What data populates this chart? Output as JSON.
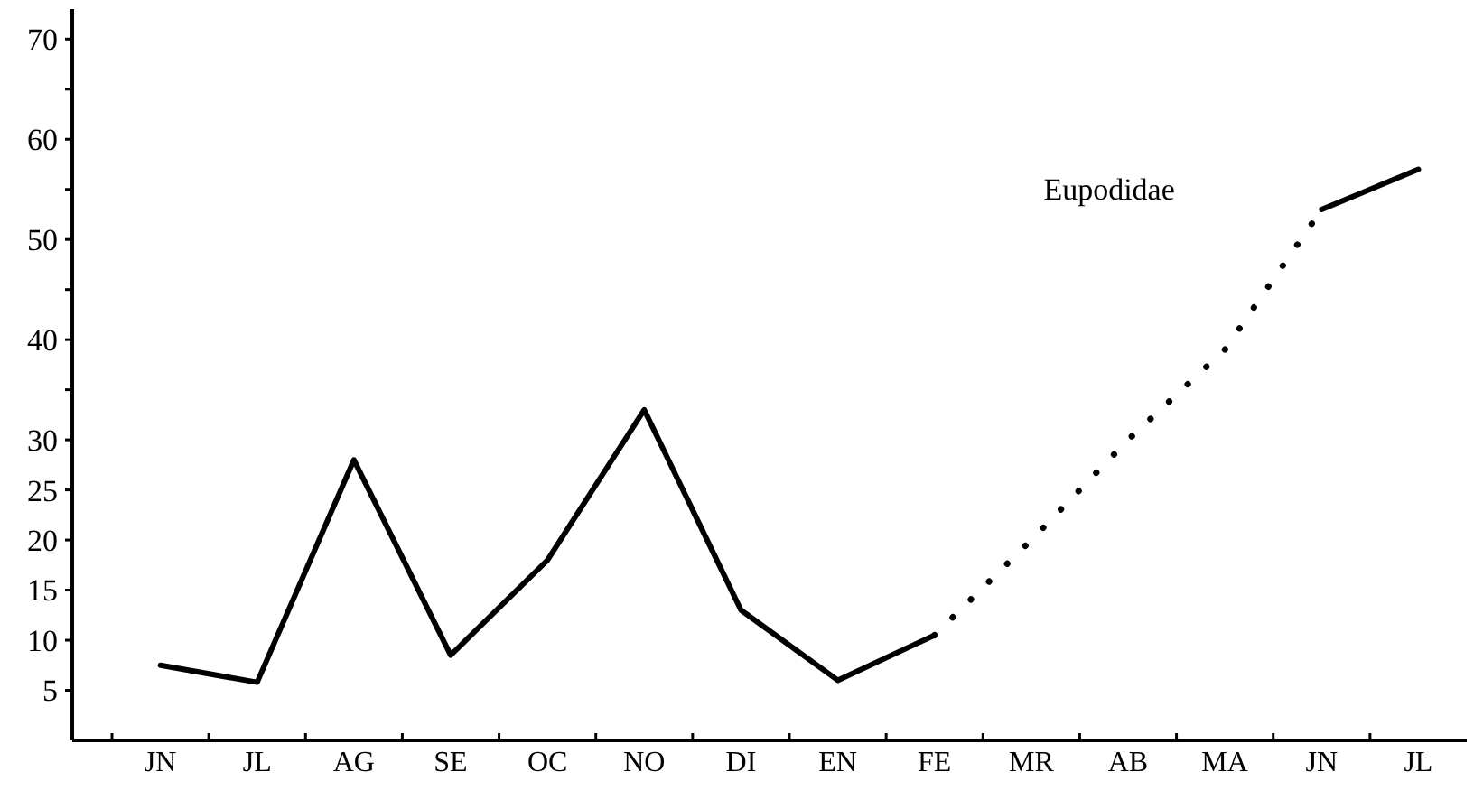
{
  "chart_data": {
    "type": "line",
    "categories": [
      "JN",
      "JL",
      "AG",
      "SE",
      "OC",
      "NO",
      "DI",
      "EN",
      "FE",
      "MR",
      "AB",
      "MA",
      "JN",
      "JL"
    ],
    "series": [
      {
        "color": "#000000",
        "line_style": "solid",
        "values": [
          7.5,
          5.8,
          28,
          8.5,
          18,
          33,
          13,
          6,
          10.5,
          null,
          null,
          null,
          null,
          null
        ]
      },
      {
        "color": "#000000",
        "line_style": "dotted",
        "values": [
          null,
          null,
          null,
          null,
          null,
          null,
          null,
          null,
          10.5,
          20,
          30,
          39,
          53,
          null
        ]
      },
      {
        "color": "#000000",
        "line_style": "solid",
        "values": [
          null,
          null,
          null,
          null,
          null,
          null,
          null,
          null,
          null,
          null,
          null,
          null,
          53,
          57
        ]
      }
    ],
    "ylim": [
      0,
      73
    ],
    "yticks": [
      5,
      10,
      15,
      20,
      25,
      30,
      {
        "value": 35,
        "label": null
      },
      40,
      {
        "value": 45,
        "label": null
      },
      50,
      {
        "value": 55,
        "label": null
      },
      60,
      {
        "value": 65,
        "label": null
      },
      70
    ],
    "annotations": [
      "Eupodidae"
    ],
    "grid": false
  }
}
